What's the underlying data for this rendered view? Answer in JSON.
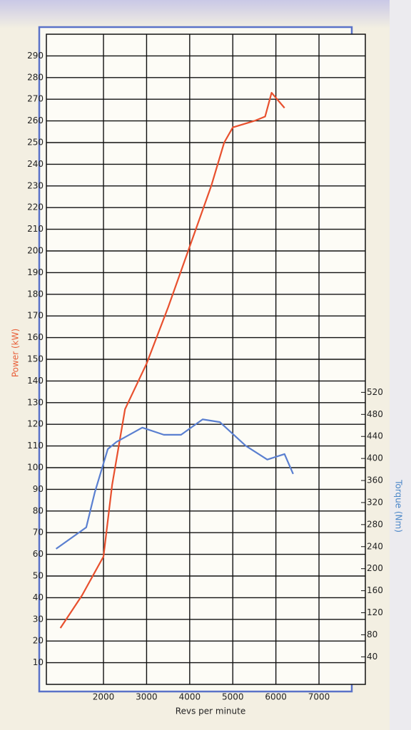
{
  "chart_data": {
    "type": "line",
    "xlabel": "Revs per minute",
    "ylabel": "Power (kW)",
    "y2label": "Torque (Nm)",
    "xlim": [
      675,
      8075
    ],
    "xticks": [
      2000,
      3000,
      4000,
      5000,
      6000,
      7000
    ],
    "ylim": [
      0,
      300
    ],
    "yticks": [
      10,
      20,
      30,
      40,
      50,
      60,
      70,
      80,
      90,
      100,
      110,
      120,
      130,
      140,
      150,
      160,
      170,
      180,
      190,
      200,
      210,
      220,
      230,
      240,
      250,
      260,
      270,
      280,
      290
    ],
    "y2lim": [
      -10,
      1170
    ],
    "y2ticks": [
      40,
      80,
      120,
      160,
      200,
      240,
      280,
      320,
      360,
      400,
      440,
      480,
      520
    ],
    "grid": true,
    "ylabel_color": "#e8603a",
    "y2label_color": "#4a86c8",
    "series": [
      {
        "color": "#e8502e",
        "axis": "y",
        "x": [
          1000,
          1500,
          2000,
          2200,
          2500,
          3000,
          3500,
          4000,
          4500,
          4800,
          5000,
          5500,
          5750,
          5900,
          6200
        ],
        "values": [
          26,
          41,
          59,
          92,
          127,
          148,
          174,
          202,
          230,
          250,
          257,
          260,
          262,
          273,
          266
        ]
      },
      {
        "color": "#5a7fd0",
        "axis": "y2",
        "x": [
          900,
          1600,
          1800,
          2100,
          2300,
          2900,
          3400,
          3800,
          4300,
          4700,
          5300,
          5800,
          6200,
          6400
        ],
        "values": [
          236,
          275,
          339,
          417,
          430,
          456,
          443,
          443,
          471,
          466,
          423,
          398,
          408,
          372
        ]
      }
    ]
  }
}
